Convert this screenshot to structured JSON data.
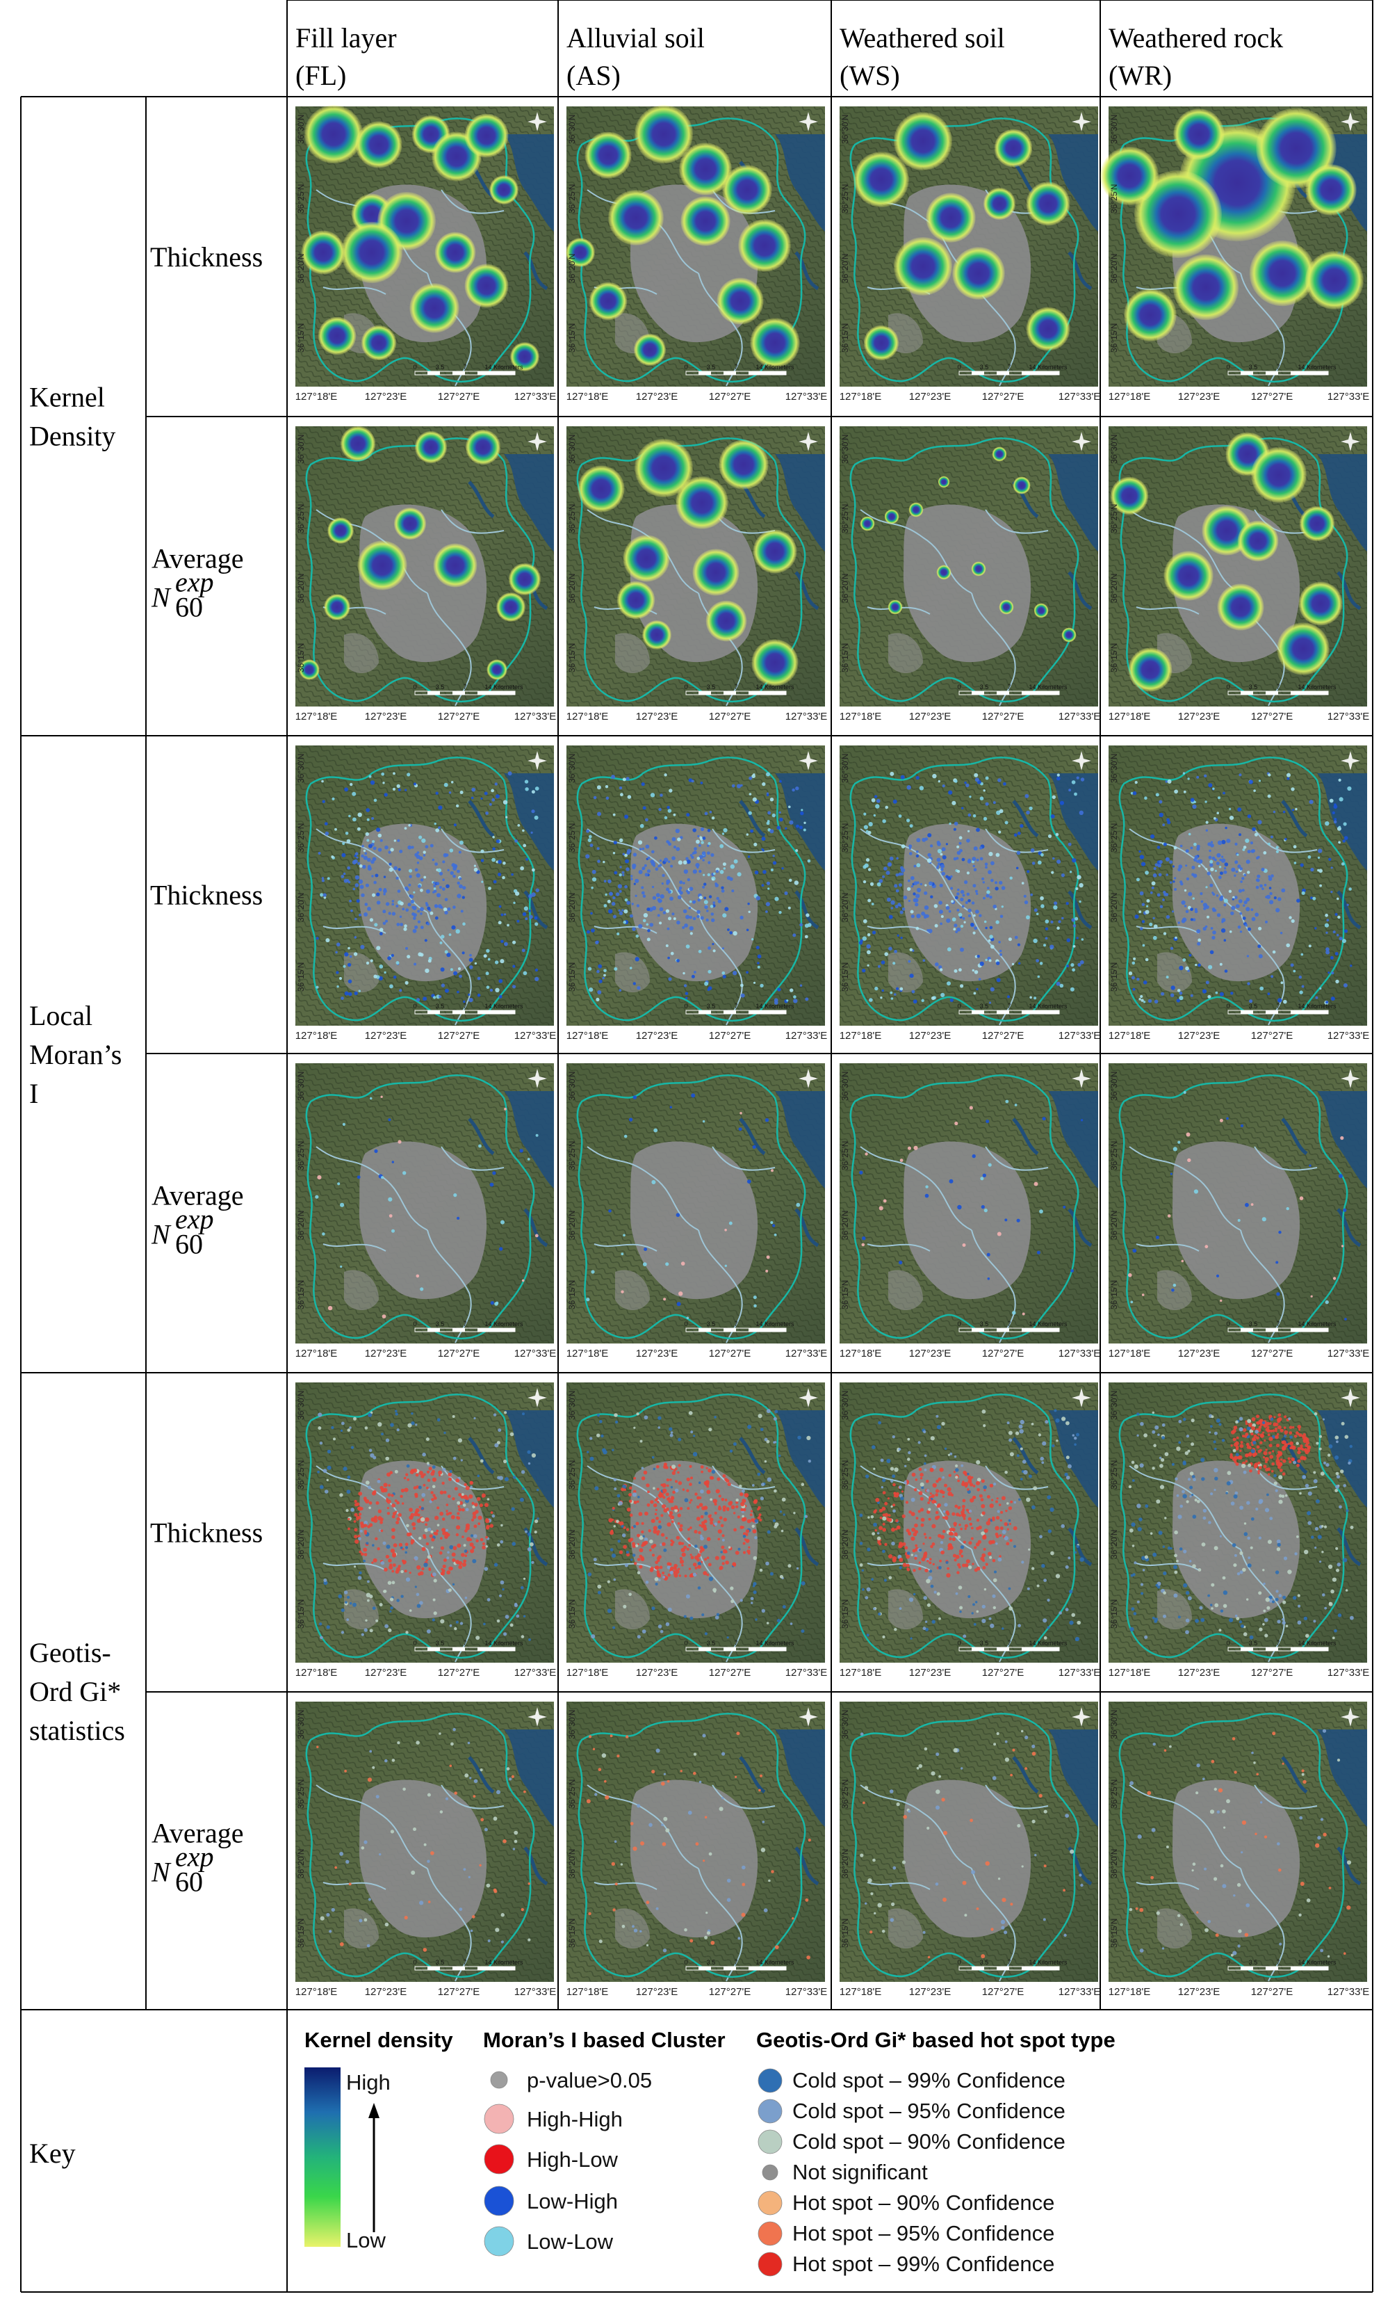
{
  "columns": [
    {
      "line1": "Fill layer",
      "line2": "(FL)"
    },
    {
      "line1": "Alluvial soil",
      "line2": "(AS)"
    },
    {
      "line1": "Weathered soil",
      "line2": "(WS)"
    },
    {
      "line1": "Weathered rock",
      "line2": "(WR)"
    }
  ],
  "groups": [
    {
      "lines": [
        "Kernel",
        "Density"
      ]
    },
    {
      "lines": [
        "Local",
        "Moran’s",
        "I"
      ]
    },
    {
      "lines": [
        "Geotis-",
        "Ord Gi*",
        "statistics"
      ]
    }
  ],
  "row_labels": {
    "thickness": "Thickness",
    "average": "Average",
    "n_base": "N",
    "n_sup": "exp",
    "n_sub": "60"
  },
  "map_axes": {
    "x_ticks": [
      "127°18'E",
      "127°23'E",
      "127°27'E",
      "127°33'E"
    ],
    "y_ticks": [
      "36°30'N",
      "36°25'N",
      "36°20'N",
      "36°15'N"
    ],
    "scale_labels": [
      "0",
      "3.5",
      "7",
      "14 Kilometers"
    ]
  },
  "key": {
    "label": "Key",
    "kernel": {
      "title": "Kernel density",
      "high": "High",
      "low": "Low",
      "colors": [
        "#0b1c6e",
        "#1f6fb0",
        "#23b37a",
        "#3ad64a",
        "#e9f36a"
      ]
    },
    "moran": {
      "title": "Moran’s I based Cluster",
      "items": [
        {
          "label": "p-value>0.05",
          "color": "#9e9e9e",
          "size": "small"
        },
        {
          "label": "High-High",
          "color": "#f3b3b3",
          "size": "large"
        },
        {
          "label": "High-Low",
          "color": "#e8121a",
          "size": "large"
        },
        {
          "label": "Low-High",
          "color": "#1a52d6",
          "size": "large"
        },
        {
          "label": "Low-Low",
          "color": "#7fd2e6",
          "size": "large"
        }
      ]
    },
    "gi": {
      "title": "Geotis-Ord Gi* based hot spot type",
      "items": [
        {
          "label": "Cold spot – 99% Confidence",
          "color": "#2f6fb3",
          "size": "large"
        },
        {
          "label": "Cold spot – 95% Confidence",
          "color": "#7b9fcc",
          "size": "large"
        },
        {
          "label": "Cold spot – 90% Confidence",
          "color": "#b9cfc2",
          "size": "large"
        },
        {
          "label": "Not significant",
          "color": "#8f8f8f",
          "size": "small"
        },
        {
          "label": "Hot spot – 90% Confidence",
          "color": "#f4b37c",
          "size": "large"
        },
        {
          "label": "Hot spot – 95% Confidence",
          "color": "#f0744f",
          "size": "large"
        },
        {
          "label": "Hot spot – 99% Confidence",
          "color": "#e32a22",
          "size": "large"
        }
      ]
    }
  }
}
